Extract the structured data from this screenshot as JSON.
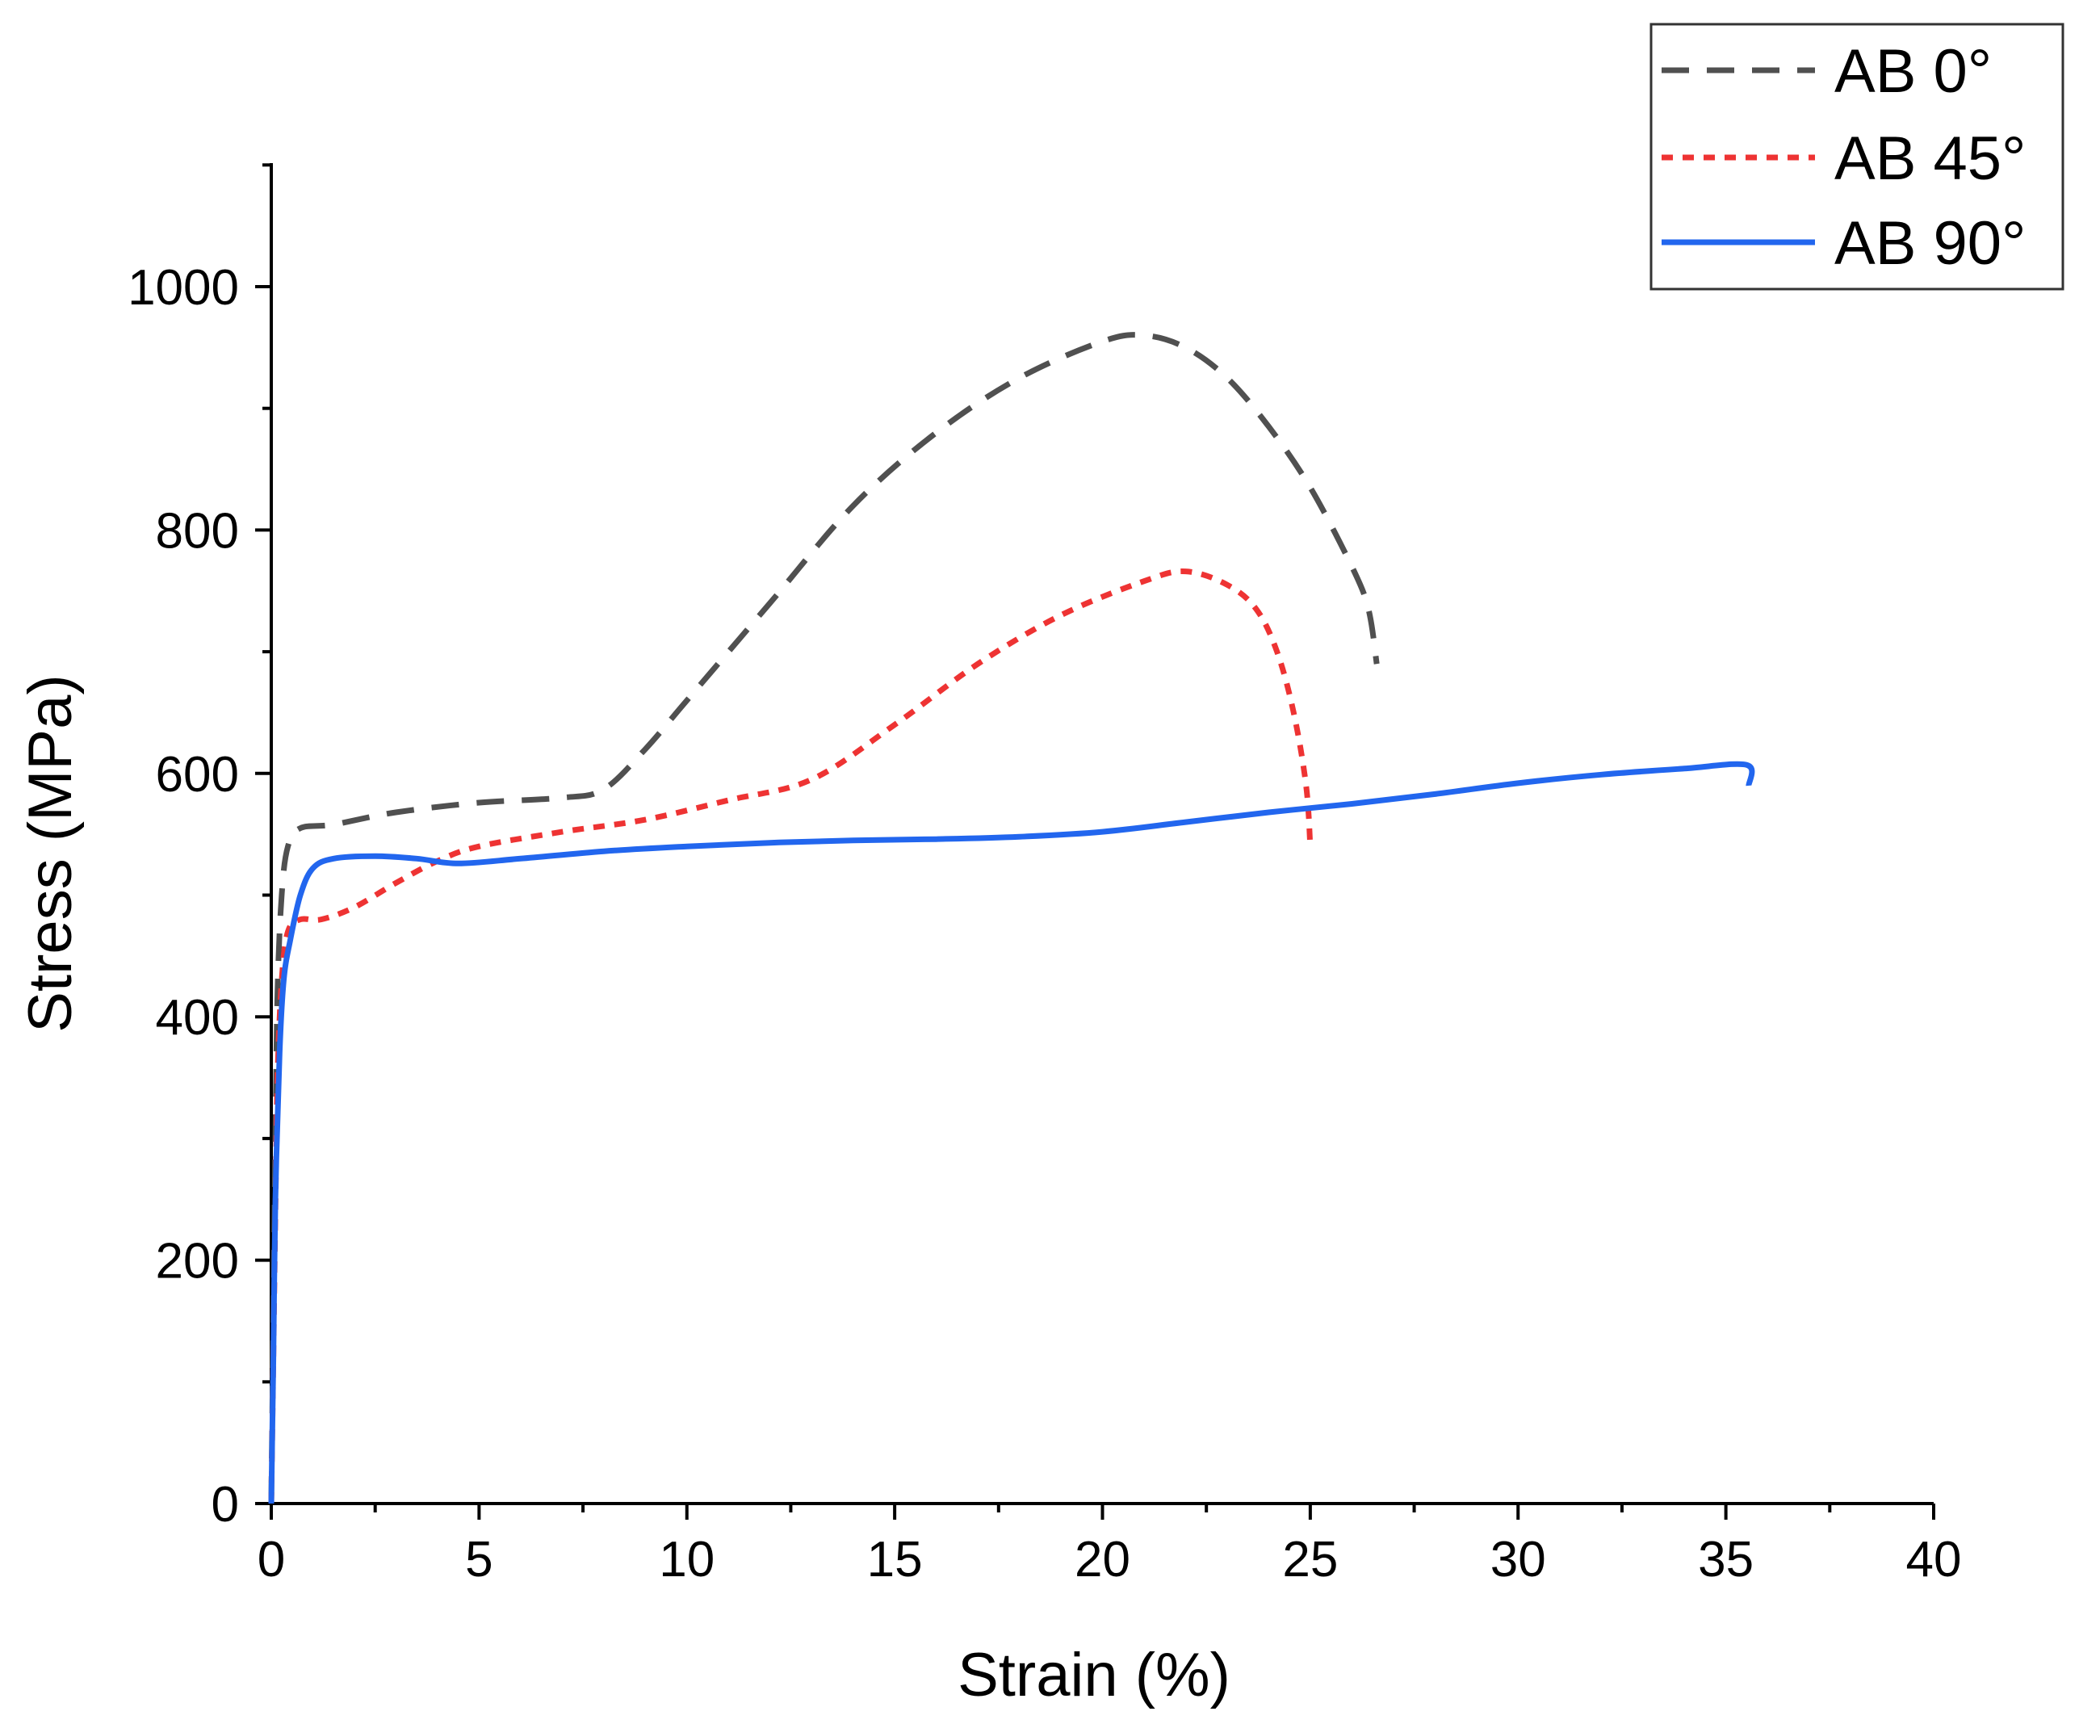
{
  "chart_data": {
    "type": "line",
    "title": "",
    "xlabel": "Strain (%)",
    "ylabel": "Stress (MPa)",
    "xlim": [
      0,
      40
    ],
    "ylim": [
      0,
      1100
    ],
    "x_ticks": [
      0,
      5,
      10,
      15,
      20,
      25,
      30,
      35,
      40
    ],
    "y_ticks": [
      0,
      200,
      400,
      600,
      800,
      1000
    ],
    "grid": false,
    "legend_position": "top-right",
    "series": [
      {
        "name": "AB 0°",
        "color": "#505050",
        "style": "dashed",
        "points": [
          [
            0,
            0
          ],
          [
            0.05,
            150
          ],
          [
            0.1,
            300
          ],
          [
            0.15,
            420
          ],
          [
            0.25,
            500
          ],
          [
            0.4,
            540
          ],
          [
            0.7,
            555
          ],
          [
            1.5,
            558
          ],
          [
            3,
            568
          ],
          [
            5,
            576
          ],
          [
            7,
            580
          ],
          [
            8,
            587
          ],
          [
            9,
            620
          ],
          [
            10,
            660
          ],
          [
            12,
            740
          ],
          [
            14,
            820
          ],
          [
            16,
            880
          ],
          [
            18,
            925
          ],
          [
            20,
            955
          ],
          [
            21,
            960
          ],
          [
            22,
            950
          ],
          [
            23,
            925
          ],
          [
            24,
            885
          ],
          [
            25,
            835
          ],
          [
            26,
            770
          ],
          [
            26.4,
            735
          ],
          [
            26.6,
            690
          ]
        ]
      },
      {
        "name": "AB 45°",
        "color": "#ee3333",
        "style": "dotted",
        "points": [
          [
            0,
            0
          ],
          [
            0.05,
            120
          ],
          [
            0.1,
            240
          ],
          [
            0.15,
            350
          ],
          [
            0.25,
            430
          ],
          [
            0.4,
            470
          ],
          [
            0.7,
            480
          ],
          [
            1.2,
            480
          ],
          [
            2,
            490
          ],
          [
            3,
            510
          ],
          [
            4,
            528
          ],
          [
            5,
            540
          ],
          [
            7,
            552
          ],
          [
            9,
            562
          ],
          [
            11,
            578
          ],
          [
            13,
            595
          ],
          [
            15,
            640
          ],
          [
            17,
            690
          ],
          [
            19,
            730
          ],
          [
            21,
            758
          ],
          [
            22,
            766
          ],
          [
            23,
            755
          ],
          [
            23.7,
            735
          ],
          [
            24.2,
            700
          ],
          [
            24.6,
            650
          ],
          [
            24.9,
            590
          ],
          [
            25,
            540
          ]
        ]
      },
      {
        "name": "AB 90°",
        "color": "#2266ee",
        "style": "solid",
        "points": [
          [
            0,
            0
          ],
          [
            0.05,
            120
          ],
          [
            0.1,
            250
          ],
          [
            0.2,
            370
          ],
          [
            0.3,
            430
          ],
          [
            0.45,
            462
          ],
          [
            0.7,
            500
          ],
          [
            1,
            522
          ],
          [
            1.5,
            530
          ],
          [
            2.5,
            532
          ],
          [
            3.5,
            530
          ],
          [
            4.5,
            526
          ],
          [
            6,
            530
          ],
          [
            8,
            536
          ],
          [
            10,
            540
          ],
          [
            12,
            543
          ],
          [
            14,
            545
          ],
          [
            16,
            546
          ],
          [
            18,
            548
          ],
          [
            20,
            552
          ],
          [
            22,
            560
          ],
          [
            24,
            568
          ],
          [
            26,
            575
          ],
          [
            28,
            583
          ],
          [
            30,
            592
          ],
          [
            32,
            599
          ],
          [
            34,
            604
          ],
          [
            35.5,
            607
          ],
          [
            35.55,
            590
          ]
        ]
      }
    ]
  }
}
